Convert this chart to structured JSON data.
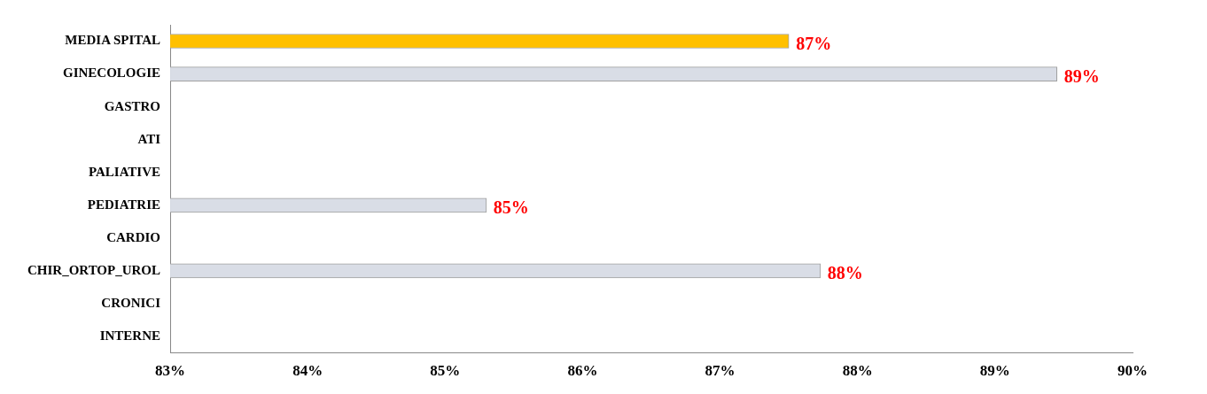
{
  "chart_data": {
    "type": "bar",
    "orientation": "horizontal",
    "categories": [
      "MEDIA SPITAL",
      "GINECOLOGIE",
      "GASTRO",
      "ATI",
      "PALIATIVE",
      "PEDIATRIE",
      "CARDIO",
      "CHIR_ORTOP_UROL",
      "CRONICI",
      "INTERNE"
    ],
    "values": [
      87.5,
      89.45,
      null,
      null,
      null,
      85.3,
      null,
      87.73,
      null,
      null
    ],
    "colors": [
      "#ffc000",
      "#d9dde6",
      "#d9dde6",
      "#d9dde6",
      "#d9dde6",
      "#d9dde6",
      "#d9dde6",
      "#d9dde6",
      "#d9dde6",
      "#d9dde6"
    ],
    "value_labels": [
      "87%",
      "89%",
      null,
      null,
      null,
      "85%",
      null,
      "88%",
      null,
      null
    ],
    "xlim": [
      83,
      90
    ],
    "xticks": [
      {
        "value": 83,
        "label": "83%"
      },
      {
        "value": 84,
        "label": "84%"
      },
      {
        "value": 85,
        "label": "85%"
      },
      {
        "value": 86,
        "label": "86%"
      },
      {
        "value": 87,
        "label": "87%"
      },
      {
        "value": 88,
        "label": "88%"
      },
      {
        "value": 89,
        "label": "89%"
      },
      {
        "value": 90,
        "label": "90%"
      }
    ],
    "grid": false,
    "legend": false
  }
}
